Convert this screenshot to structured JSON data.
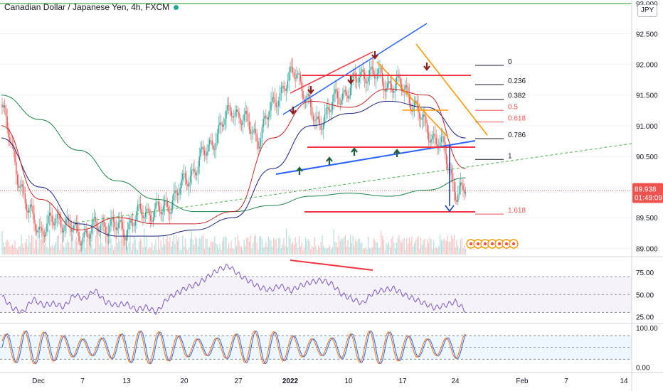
{
  "header": {
    "title": "Canadian Dollar / Japanese Yen, 4h, FXCM",
    "currency_button": "JPY"
  },
  "chart_data": [
    {
      "type": "candlestick",
      "title": "Canadian Dollar / Japanese Yen, 4h, FXCM",
      "price_scale": {
        "ticks": [
          89.0,
          89.5,
          90.0,
          90.5,
          91.0,
          91.5,
          92.0,
          92.5,
          93.0
        ],
        "tick_labels": [
          "89.000",
          "89.500",
          "90.000",
          "90.500",
          "91.000",
          "91.500",
          "92.000",
          "92.500",
          "93.000"
        ],
        "ylim": [
          88.9,
          93.05
        ]
      },
      "time_scale": {
        "labels": [
          "Dec",
          "7",
          "13",
          "20",
          "27",
          "2022",
          "10",
          "17",
          "24",
          "Feb",
          "7",
          "14"
        ],
        "bold_labels": [
          "2022"
        ]
      },
      "current_price": {
        "value": 89.938,
        "label": "89.938",
        "countdown": "01:49:09",
        "color": "#ef5350"
      },
      "close_series_anchors": {
        "x_bar": [
          0,
          10,
          20,
          30,
          45,
          60,
          80,
          95,
          110,
          125,
          140,
          160,
          180,
          200,
          215,
          230,
          245,
          260,
          275,
          285,
          300,
          315,
          330,
          345,
          355,
          362
        ],
        "y_close": [
          91.3,
          90.4,
          89.6,
          89.3,
          89.5,
          89.2,
          89.4,
          89.3,
          89.6,
          89.6,
          90.0,
          90.6,
          91.3,
          90.8,
          91.5,
          91.9,
          91.0,
          91.4,
          91.7,
          91.9,
          91.7,
          91.6,
          91.0,
          90.6,
          89.9,
          89.938
        ]
      },
      "series": [
        {
          "name": "",
          "kind": "moving-average",
          "color": "#1e8449",
          "values": [
            91.5,
            91.1,
            90.6,
            90.1,
            89.8,
            89.6,
            89.6,
            89.7,
            89.85,
            89.9,
            89.85,
            89.95,
            90.15
          ]
        },
        {
          "name": "",
          "kind": "moving-average",
          "color": "#1a237e",
          "values": [
            90.8,
            90.0,
            89.4,
            89.2,
            89.2,
            89.3,
            89.5,
            90.3,
            91.0,
            91.2,
            91.4,
            91.3,
            90.8
          ]
        },
        {
          "name": "",
          "kind": "moving-average",
          "color": "#c62828",
          "values": [
            91.0,
            89.8,
            89.3,
            89.5,
            89.4,
            89.4,
            89.6,
            90.8,
            91.4,
            91.3,
            91.6,
            91.5,
            90.3
          ]
        }
      ],
      "fibonacci_levels": [
        {
          "label": "0",
          "value": 92.05,
          "color": "#131722"
        },
        {
          "label": "0.236",
          "value": 91.67,
          "color": "#131722"
        },
        {
          "label": "0.382",
          "value": 91.43,
          "color": "#131722"
        },
        {
          "label": "0.5",
          "value": 91.25,
          "color": "#ef5350"
        },
        {
          "label": "0.618",
          "value": 91.06,
          "color": "#ef5350"
        },
        {
          "label": "0.786",
          "value": 90.79,
          "color": "#131722"
        },
        {
          "label": "1",
          "value": 90.45,
          "color": "#131722"
        },
        {
          "label": "1.618",
          "value": 89.56,
          "color": "#ef5350"
        }
      ],
      "pattern_lines": [
        {
          "name": "upper-channel-red",
          "color": "#f23645"
        },
        {
          "name": "upper-channel-blue",
          "color": "#2962ff"
        },
        {
          "name": "neckline-blue",
          "color": "#2962ff"
        },
        {
          "name": "descending-channel-orange",
          "color": "#ff9800"
        },
        {
          "name": "resistance-red",
          "color": "#f23645"
        },
        {
          "name": "support-red",
          "color": "#f23645"
        },
        {
          "name": "target-arrow-blue",
          "color": "#1e40af"
        },
        {
          "name": "trend-dotted-green",
          "color": "#4caf50"
        }
      ],
      "markers": {
        "down_arrows": 5,
        "up_arrows": 4,
        "event_icons": 7
      }
    },
    {
      "type": "line",
      "kind": "oscillator",
      "ylim": [
        20,
        90
      ],
      "tick_labels": [
        "75.00",
        "50.00",
        "25.00"
      ],
      "band": [
        30,
        70
      ],
      "color": "#7e57c2",
      "values": [
        48,
        35,
        30,
        45,
        38,
        40,
        36,
        50,
        45,
        55,
        42,
        38,
        40,
        33,
        36,
        30,
        45,
        52,
        58,
        62,
        70,
        78,
        82,
        72,
        65,
        58,
        55,
        60,
        54,
        60,
        64,
        66,
        62,
        50,
        45,
        40,
        52,
        55,
        57,
        50,
        45,
        40,
        35,
        38,
        42,
        32
      ]
    },
    {
      "type": "line",
      "kind": "stochastic",
      "ylim": [
        -10,
        105
      ],
      "tick_labels": [
        "100.00",
        "0.00"
      ],
      "band": [
        20,
        80
      ],
      "series": [
        {
          "name": "",
          "color": "#2962ff"
        },
        {
          "name": "",
          "color": "#ff6d00"
        }
      ]
    }
  ]
}
